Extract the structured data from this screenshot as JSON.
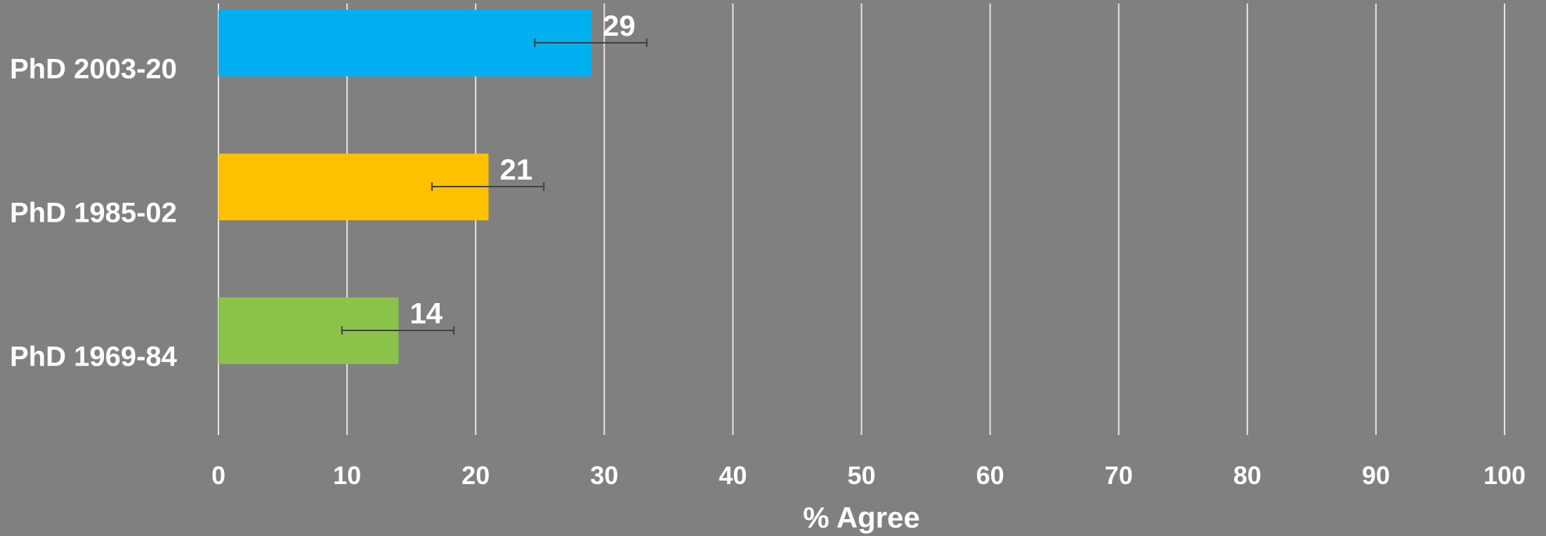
{
  "chart_data": {
    "type": "bar",
    "orientation": "horizontal",
    "categories": [
      "PhD 2003-20",
      "PhD 1985-02",
      "PhD 1969-84"
    ],
    "values": [
      29,
      21,
      14
    ],
    "error_low": [
      24.6,
      16.6,
      9.6
    ],
    "error_high": [
      33.3,
      25.3,
      18.3
    ],
    "colors": [
      "#00B0F0",
      "#FFC000",
      "#8BC34A"
    ],
    "xlabel": "% Agree",
    "ylabel": "",
    "title": "",
    "xlim": [
      0,
      100
    ],
    "xticks": [
      0,
      10,
      20,
      30,
      40,
      50,
      60,
      70,
      80,
      90,
      100
    ],
    "grid": "vertical",
    "legend": "none",
    "background": "#808080"
  }
}
